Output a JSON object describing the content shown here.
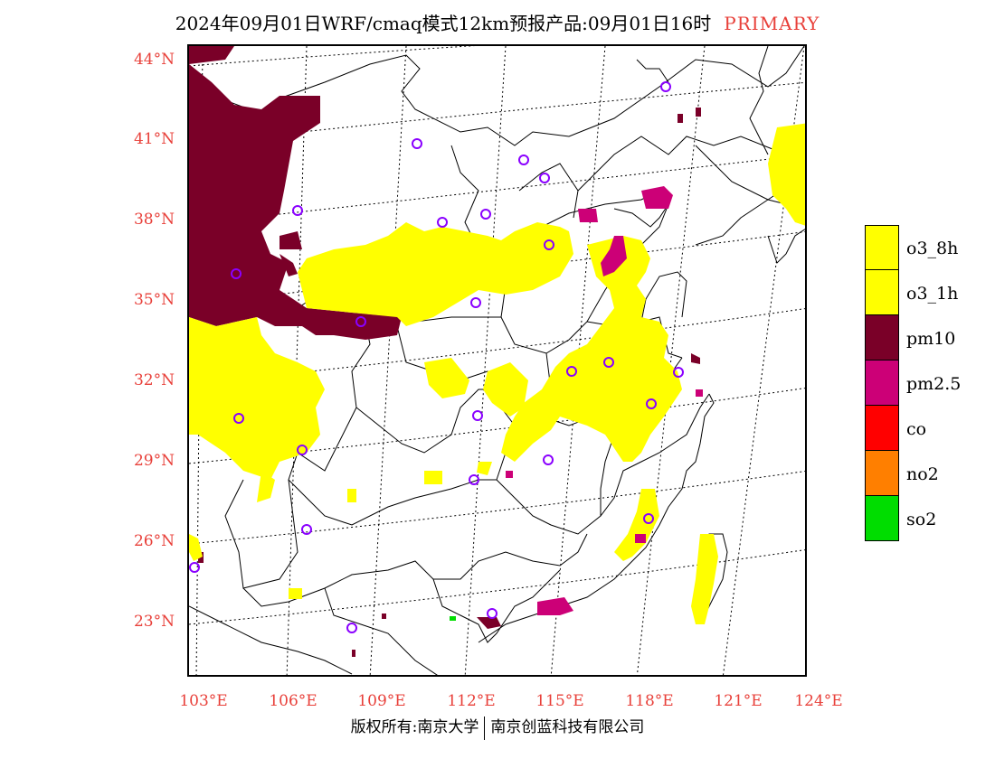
{
  "header": {
    "title": "2024年09月01日WRF/cmaq模式12km预报产品:09月01日16时",
    "tag": "PRIMARY"
  },
  "axes": {
    "lat_labels": [
      "44°N",
      "41°N",
      "38°N",
      "35°N",
      "32°N",
      "29°N",
      "26°N",
      "23°N"
    ],
    "lon_labels": [
      "103°E",
      "106°E",
      "109°E",
      "112°E",
      "115°E",
      "118°E",
      "121°E",
      "124°E"
    ]
  },
  "legend": {
    "items": [
      {
        "label": "o3_8h",
        "color": "#ffff00"
      },
      {
        "label": "o3_1h",
        "color": "#ffff00"
      },
      {
        "label": "pm10",
        "color": "#7a0028"
      },
      {
        "label": "pm2.5",
        "color": "#cc0077"
      },
      {
        "label": "co",
        "color": "#ff0000"
      },
      {
        "label": "no2",
        "color": "#ff7f00"
      },
      {
        "label": "so2",
        "color": "#00dd00"
      }
    ]
  },
  "footer": {
    "copyright": "版权所有:南京大学",
    "company": "南京创蓝科技有限公司"
  }
}
